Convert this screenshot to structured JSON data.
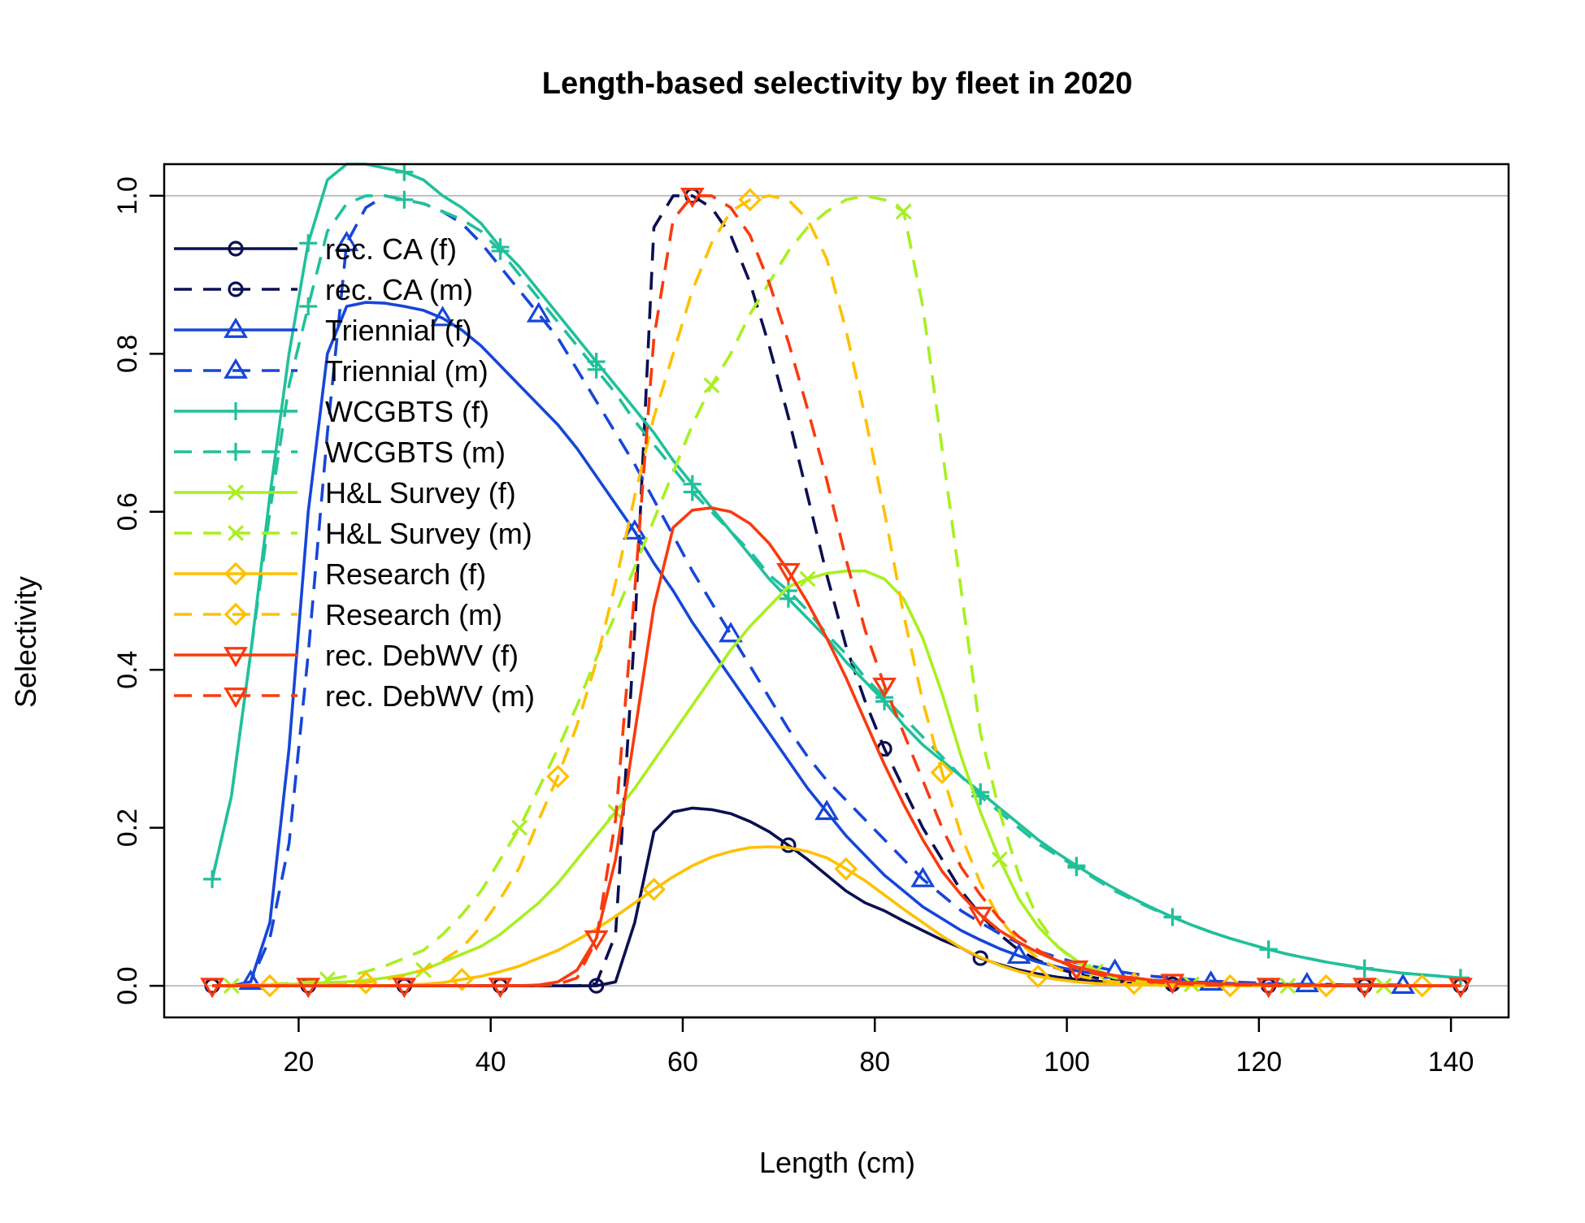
{
  "chart_data": {
    "type": "line",
    "title": "Length-based selectivity by fleet in 2020",
    "xlabel": "Length (cm)",
    "ylabel": "Selectivity",
    "xlim": [
      6,
      146
    ],
    "ylim": [
      -0.04,
      1.04
    ],
    "x_ticks": [
      20,
      40,
      60,
      80,
      100,
      120,
      140
    ],
    "x_tick_labels": [
      "20",
      "40",
      "60",
      "80",
      "100",
      "120",
      "140"
    ],
    "y_ticks": [
      0.0,
      0.2,
      0.4,
      0.6,
      0.8,
      1.0
    ],
    "y_tick_labels": [
      "0.0",
      "0.2",
      "0.4",
      "0.6",
      "0.8",
      "1.0"
    ],
    "reference_lines_y": [
      0,
      1
    ],
    "reference_line_color": "#bebebe",
    "legend_position": "top-left",
    "x": [
      11,
      13,
      15,
      17,
      19,
      21,
      23,
      25,
      27,
      29,
      31,
      33,
      35,
      37,
      39,
      41,
      43,
      45,
      47,
      49,
      51,
      53,
      55,
      57,
      59,
      61,
      63,
      65,
      67,
      69,
      71,
      73,
      75,
      77,
      79,
      81,
      83,
      85,
      87,
      89,
      91,
      93,
      95,
      97,
      99,
      101,
      103,
      105,
      107,
      109,
      111,
      113,
      115,
      117,
      119,
      121,
      123,
      125,
      127,
      129,
      131,
      133,
      135,
      137,
      139,
      141
    ],
    "series": [
      {
        "name": "rec. CA (f)",
        "color": "#0b0f52",
        "dash": false,
        "marker": "circle",
        "marker_start": 0,
        "marker_step": 10,
        "values": [
          0,
          0,
          0,
          0,
          0,
          0,
          0,
          0,
          0,
          0,
          0,
          0,
          0,
          0,
          0,
          0,
          0,
          0,
          0,
          0,
          0,
          0.005,
          0.08,
          0.195,
          0.22,
          0.225,
          0.223,
          0.218,
          0.208,
          0.195,
          0.178,
          0.16,
          0.14,
          0.12,
          0.105,
          0.095,
          0.082,
          0.07,
          0.058,
          0.048,
          0.035,
          0.027,
          0.02,
          0.015,
          0.011,
          0.008,
          0.006,
          0.004,
          0.003,
          0.002,
          0.002,
          0.001,
          0.001,
          0.001,
          0.001,
          0,
          0,
          0,
          0,
          0,
          0,
          0,
          0,
          0,
          0,
          0
        ]
      },
      {
        "name": "rec. CA (m)",
        "color": "#0b0f52",
        "dash": true,
        "marker": "circle",
        "marker_start": 5,
        "marker_step": 10,
        "values": [
          0,
          0,
          0,
          0,
          0,
          0,
          0,
          0,
          0,
          0,
          0,
          0,
          0,
          0,
          0,
          0,
          0,
          0,
          0,
          0,
          0.003,
          0.065,
          0.45,
          0.96,
          1.0,
          1.0,
          0.985,
          0.95,
          0.89,
          0.81,
          0.72,
          0.62,
          0.52,
          0.43,
          0.36,
          0.3,
          0.25,
          0.2,
          0.16,
          0.12,
          0.09,
          0.065,
          0.045,
          0.032,
          0.022,
          0.015,
          0.01,
          0.007,
          0.005,
          0.003,
          0.002,
          0.002,
          0.001,
          0.001,
          0,
          0,
          0,
          0,
          0,
          0,
          0,
          0,
          0,
          0,
          0,
          0
        ]
      },
      {
        "name": "Triennial (f)",
        "color": "#1646d9",
        "dash": false,
        "marker": "tri-up",
        "marker_start": 2,
        "marker_step": 10,
        "values": [
          0,
          0,
          0.005,
          0.08,
          0.3,
          0.6,
          0.8,
          0.86,
          0.865,
          0.864,
          0.86,
          0.855,
          0.845,
          0.83,
          0.81,
          0.785,
          0.76,
          0.735,
          0.71,
          0.68,
          0.645,
          0.61,
          0.575,
          0.535,
          0.5,
          0.46,
          0.425,
          0.39,
          0.355,
          0.32,
          0.285,
          0.25,
          0.22,
          0.19,
          0.165,
          0.14,
          0.12,
          0.1,
          0.085,
          0.07,
          0.058,
          0.047,
          0.038,
          0.03,
          0.024,
          0.019,
          0.015,
          0.012,
          0.009,
          0.007,
          0.006,
          0.005,
          0.004,
          0.003,
          0.002,
          0.002,
          0.002,
          0.001,
          0.001,
          0.001,
          0.001,
          0.001,
          0,
          0,
          0,
          0
        ]
      },
      {
        "name": "Triennial (m)",
        "color": "#1646d9",
        "dash": true,
        "marker": "tri-up",
        "marker_start": 7,
        "marker_step": 10,
        "values": [
          0,
          0,
          0.005,
          0.06,
          0.18,
          0.42,
          0.7,
          0.94,
          0.985,
          1.0,
          0.995,
          0.99,
          0.98,
          0.965,
          0.94,
          0.91,
          0.88,
          0.85,
          0.82,
          0.78,
          0.74,
          0.7,
          0.66,
          0.615,
          0.57,
          0.525,
          0.485,
          0.445,
          0.405,
          0.365,
          0.325,
          0.29,
          0.26,
          0.235,
          0.21,
          0.185,
          0.16,
          0.135,
          0.115,
          0.095,
          0.08,
          0.066,
          0.054,
          0.044,
          0.036,
          0.029,
          0.024,
          0.019,
          0.015,
          0.012,
          0.01,
          0.008,
          0.006,
          0.005,
          0.004,
          0.003,
          0.002,
          0.002,
          0.002,
          0.001,
          0.001,
          0.001,
          0.001,
          0,
          0,
          0
        ]
      },
      {
        "name": "WCGBTS (f)",
        "color": "#20c09a",
        "dash": false,
        "marker": "plus",
        "marker_start": 0,
        "marker_step": 5,
        "values": [
          0.135,
          0.24,
          0.42,
          0.62,
          0.8,
          0.94,
          1.02,
          1.04,
          1.04,
          1.035,
          1.03,
          1.02,
          1.0,
          0.985,
          0.965,
          0.935,
          0.91,
          0.88,
          0.85,
          0.82,
          0.79,
          0.76,
          0.73,
          0.7,
          0.665,
          0.635,
          0.605,
          0.575,
          0.545,
          0.515,
          0.49,
          0.465,
          0.44,
          0.41,
          0.385,
          0.36,
          0.33,
          0.305,
          0.285,
          0.265,
          0.245,
          0.225,
          0.205,
          0.185,
          0.168,
          0.152,
          0.137,
          0.123,
          0.11,
          0.098,
          0.087,
          0.077,
          0.068,
          0.06,
          0.053,
          0.046,
          0.04,
          0.035,
          0.03,
          0.026,
          0.022,
          0.019,
          0.016,
          0.014,
          0.012,
          0.01
        ]
      },
      {
        "name": "WCGBTS (m)",
        "color": "#20c09a",
        "dash": true,
        "marker": "plus",
        "marker_start": 5,
        "marker_step": 5,
        "values": [
          0.135,
          0.24,
          0.42,
          0.6,
          0.76,
          0.86,
          0.955,
          0.99,
          1.0,
          1.0,
          0.995,
          0.99,
          0.98,
          0.97,
          0.955,
          0.93,
          0.9,
          0.87,
          0.84,
          0.81,
          0.78,
          0.75,
          0.715,
          0.685,
          0.655,
          0.625,
          0.6,
          0.575,
          0.55,
          0.52,
          0.5,
          0.475,
          0.445,
          0.42,
          0.39,
          0.365,
          0.34,
          0.315,
          0.29,
          0.265,
          0.24,
          0.22,
          0.2,
          0.18,
          0.165,
          0.15,
          0.135,
          0.12,
          0.108,
          0.097,
          0.087,
          0.077,
          0.068,
          0.06,
          0.053,
          0.046,
          0.04,
          0.035,
          0.03,
          0.026,
          0.022,
          0.019,
          0.016,
          0.014,
          0.012,
          0.01
        ]
      },
      {
        "name": "H&L Survey (f)",
        "color": "#a8f01f",
        "dash": false,
        "marker": "cross",
        "marker_start": 1,
        "marker_step": 10,
        "values": [
          0,
          0,
          0.001,
          0.001,
          0.002,
          0.003,
          0.004,
          0.005,
          0.007,
          0.01,
          0.014,
          0.02,
          0.03,
          0.04,
          0.05,
          0.065,
          0.085,
          0.105,
          0.13,
          0.16,
          0.19,
          0.22,
          0.25,
          0.285,
          0.32,
          0.355,
          0.39,
          0.425,
          0.455,
          0.48,
          0.505,
          0.515,
          0.522,
          0.525,
          0.525,
          0.515,
          0.49,
          0.44,
          0.37,
          0.29,
          0.22,
          0.16,
          0.11,
          0.075,
          0.05,
          0.032,
          0.02,
          0.012,
          0.008,
          0.005,
          0.003,
          0.002,
          0.001,
          0.001,
          0.001,
          0,
          0,
          0,
          0,
          0,
          0,
          0,
          0,
          0,
          0,
          0
        ]
      },
      {
        "name": "H&L Survey (m)",
        "color": "#a8f01f",
        "dash": true,
        "marker": "cross",
        "marker_start": 6,
        "marker_step": 10,
        "values": [
          0,
          0,
          0.001,
          0.002,
          0.003,
          0.005,
          0.008,
          0.012,
          0.018,
          0.025,
          0.035,
          0.045,
          0.065,
          0.09,
          0.12,
          0.16,
          0.2,
          0.25,
          0.3,
          0.355,
          0.415,
          0.47,
          0.53,
          0.59,
          0.65,
          0.71,
          0.76,
          0.8,
          0.85,
          0.89,
          0.93,
          0.96,
          0.98,
          0.995,
          1.0,
          0.995,
          0.98,
          0.86,
          0.68,
          0.5,
          0.32,
          0.22,
          0.14,
          0.085,
          0.05,
          0.03,
          0.018,
          0.01,
          0.006,
          0.003,
          0.002,
          0.001,
          0.001,
          0,
          0,
          0,
          0,
          0,
          0,
          0,
          0,
          0,
          0,
          0,
          0,
          0
        ]
      },
      {
        "name": "Research (f)",
        "color": "#ffc000",
        "dash": false,
        "marker": "diamond",
        "marker_start": 3,
        "marker_step": 10,
        "values": [
          0,
          0,
          0,
          0,
          0,
          0,
          0,
          0,
          0,
          0,
          0.001,
          0.002,
          0.004,
          0.008,
          0.012,
          0.018,
          0.025,
          0.035,
          0.045,
          0.058,
          0.072,
          0.088,
          0.105,
          0.122,
          0.138,
          0.152,
          0.163,
          0.17,
          0.175,
          0.176,
          0.175,
          0.17,
          0.162,
          0.148,
          0.133,
          0.115,
          0.097,
          0.08,
          0.063,
          0.048,
          0.036,
          0.026,
          0.018,
          0.012,
          0.008,
          0.005,
          0.003,
          0.002,
          0.001,
          0.001,
          0,
          0,
          0,
          0,
          0,
          0,
          0,
          0,
          0,
          0,
          0,
          0,
          0,
          0,
          0,
          0
        ]
      },
      {
        "name": "Research (m)",
        "color": "#ffc000",
        "dash": true,
        "marker": "diamond",
        "marker_start": 8,
        "marker_step": 10,
        "values": [
          0,
          0,
          0,
          0,
          0,
          0,
          0.001,
          0.002,
          0.004,
          0.008,
          0.013,
          0.02,
          0.032,
          0.048,
          0.075,
          0.11,
          0.15,
          0.21,
          0.265,
          0.33,
          0.41,
          0.51,
          0.62,
          0.72,
          0.8,
          0.88,
          0.94,
          0.98,
          0.995,
          1.0,
          0.995,
          0.97,
          0.92,
          0.83,
          0.72,
          0.6,
          0.47,
          0.36,
          0.27,
          0.19,
          0.13,
          0.085,
          0.055,
          0.035,
          0.022,
          0.013,
          0.008,
          0.005,
          0.003,
          0.002,
          0.001,
          0.001,
          0,
          0,
          0,
          0,
          0,
          0,
          0,
          0,
          0,
          0,
          0,
          0,
          0,
          0
        ]
      },
      {
        "name": "rec. DebWV (f)",
        "color": "#fa3a0e",
        "dash": false,
        "marker": "tri-down",
        "marker_start": 0,
        "marker_step": 10,
        "values": [
          0,
          0,
          0,
          0,
          0,
          0,
          0,
          0,
          0,
          0,
          0,
          0,
          0,
          0,
          0,
          0,
          0,
          0.001,
          0.005,
          0.02,
          0.06,
          0.16,
          0.32,
          0.48,
          0.58,
          0.602,
          0.605,
          0.6,
          0.585,
          0.56,
          0.525,
          0.485,
          0.44,
          0.39,
          0.335,
          0.28,
          0.23,
          0.185,
          0.145,
          0.115,
          0.09,
          0.07,
          0.055,
          0.042,
          0.032,
          0.024,
          0.018,
          0.013,
          0.01,
          0.007,
          0.005,
          0.004,
          0.003,
          0.002,
          0.002,
          0.001,
          0.001,
          0.001,
          0,
          0,
          0,
          0,
          0,
          0,
          0,
          0
        ]
      },
      {
        "name": "rec. DebWV (m)",
        "color": "#fa3a0e",
        "dash": true,
        "marker": "tri-down",
        "marker_start": 5,
        "marker_step": 10,
        "values": [
          0,
          0,
          0,
          0,
          0,
          0,
          0,
          0,
          0,
          0,
          0,
          0,
          0,
          0,
          0,
          0,
          0,
          0,
          0.002,
          0.01,
          0.058,
          0.21,
          0.5,
          0.82,
          0.97,
          1.0,
          1.0,
          0.985,
          0.95,
          0.89,
          0.815,
          0.73,
          0.64,
          0.54,
          0.45,
          0.38,
          0.32,
          0.26,
          0.2,
          0.15,
          0.115,
          0.085,
          0.062,
          0.045,
          0.032,
          0.022,
          0.015,
          0.01,
          0.007,
          0.005,
          0.003,
          0.002,
          0.001,
          0.001,
          0.001,
          0,
          0,
          0,
          0,
          0,
          0,
          0,
          0,
          0,
          0,
          0
        ]
      }
    ]
  }
}
